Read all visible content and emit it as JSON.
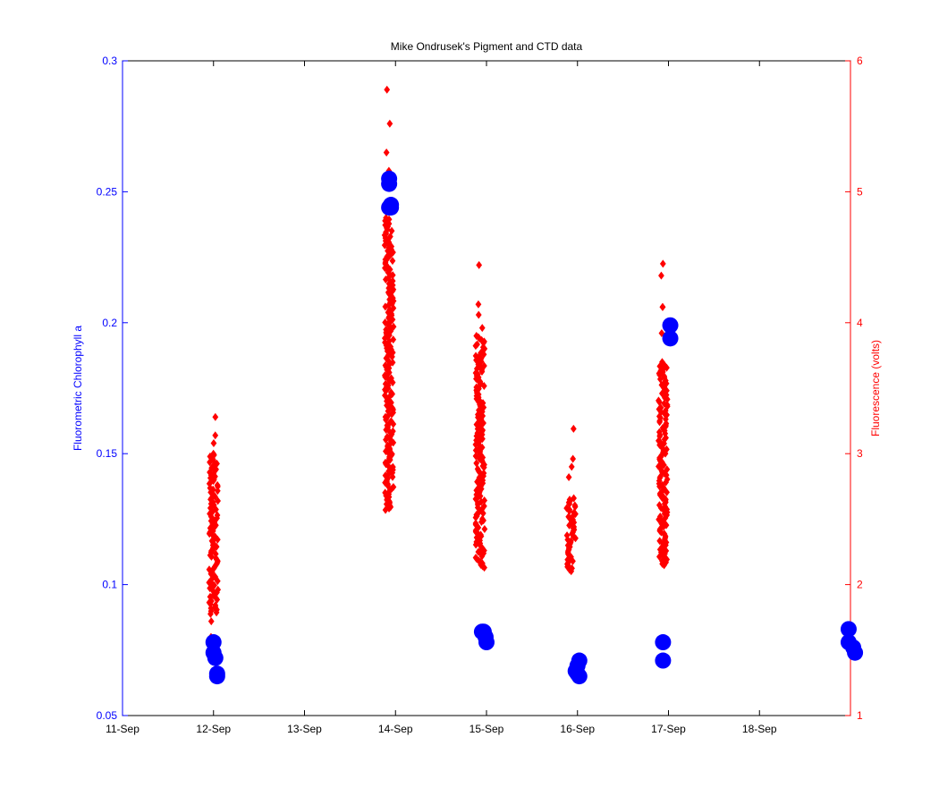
{
  "chart_data": {
    "type": "scatter",
    "title": "Mike Ondrusek's Pigment and CTD data",
    "xlabel": "",
    "x_ticks": [
      "11-Sep",
      "12-Sep",
      "13-Sep",
      "14-Sep",
      "15-Sep",
      "16-Sep",
      "17-Sep",
      "18-Sep"
    ],
    "xlim": [
      0,
      8
    ],
    "left_axis": {
      "label": "Fluorometric Chlorophyll a",
      "ylim": [
        0.05,
        0.3
      ],
      "ticks": [
        "0.05",
        "0.1",
        "0.15",
        "0.2",
        "0.25",
        "0.3"
      ],
      "color": "#0000ff"
    },
    "right_axis": {
      "label": "Fluorescence (volts)",
      "ylim": [
        1,
        6
      ],
      "ticks": [
        "1",
        "2",
        "3",
        "4",
        "5",
        "6"
      ],
      "color": "#ff0000"
    },
    "series": [
      {
        "axis": "left",
        "marker": "circle",
        "color": "#0000ff",
        "x": [
          1.0,
          1.0,
          1.02,
          1.04,
          1.04,
          2.93,
          2.93,
          2.93,
          2.95,
          2.95,
          3.95,
          3.97,
          3.99,
          4.0,
          4.98,
          5.0,
          5.02,
          5.0,
          5.02,
          5.94,
          5.94,
          6.02,
          6.02,
          7.98,
          7.98,
          8.05,
          8.03
        ],
        "y": [
          0.078,
          0.074,
          0.072,
          0.065,
          0.066,
          0.255,
          0.253,
          0.244,
          0.245,
          0.244,
          0.082,
          0.082,
          0.08,
          0.078,
          0.067,
          0.069,
          0.071,
          0.066,
          0.065,
          0.078,
          0.071,
          0.199,
          0.194,
          0.083,
          0.078,
          0.074,
          0.076
        ]
      },
      {
        "axis": "right",
        "marker": "diamond",
        "color": "#ff0000",
        "clusters": [
          {
            "x": 1.0,
            "ymin": 1.77,
            "ymax": 3.0,
            "outliers": [
              1.6,
              1.72,
              1.82,
              3.08,
              3.14,
              3.28
            ]
          },
          {
            "x": 2.93,
            "ymin": 2.56,
            "ymax": 4.8,
            "outliers": [
              4.9,
              5.06,
              5.16,
              5.3,
              5.52,
              5.78
            ]
          },
          {
            "x": 3.93,
            "ymin": 2.12,
            "ymax": 3.9,
            "outliers": [
              3.96,
              4.06,
              4.14,
              3.12,
              4.44
            ]
          },
          {
            "x": 4.93,
            "ymin": 2.1,
            "ymax": 2.66,
            "outliers": [
              2.82,
              2.9,
              2.96,
              3.19
            ]
          },
          {
            "x": 5.94,
            "ymin": 2.14,
            "ymax": 3.7,
            "outliers": [
              3.92,
              4.12,
              4.36,
              4.45,
              4.12
            ]
          }
        ]
      }
    ],
    "grid": false,
    "legend": "none"
  }
}
